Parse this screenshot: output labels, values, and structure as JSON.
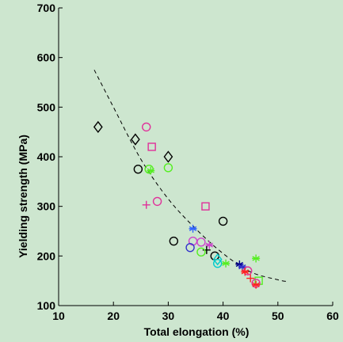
{
  "chart_data": {
    "type": "scatter",
    "xlabel": "Total elongation (%)",
    "ylabel": "Yielding strength (MPa)",
    "xlim": [
      10,
      60
    ],
    "ylim": [
      100,
      700
    ],
    "x_ticks": [
      "10",
      "20",
      "30",
      "40",
      "50",
      "60"
    ],
    "y_ticks": [
      "100",
      "200",
      "300",
      "400",
      "500",
      "600",
      "700"
    ],
    "grid": false,
    "legend": "none",
    "colors": {
      "background": "#cde6cf",
      "axes": "#000000",
      "fit_line": "#000000"
    },
    "fit_curve": {
      "style": "dashed",
      "points": [
        [
          16.5,
          575
        ],
        [
          20,
          500
        ],
        [
          25,
          395
        ],
        [
          30,
          315
        ],
        [
          35,
          255
        ],
        [
          40,
          205
        ],
        [
          45,
          168
        ],
        [
          50,
          152
        ],
        [
          52,
          148
        ]
      ]
    },
    "points": [
      {
        "x": 17.2,
        "y": 460,
        "marker": "diamond",
        "color": "#000000"
      },
      {
        "x": 24.0,
        "y": 435,
        "marker": "diamond",
        "color": "#000000"
      },
      {
        "x": 26.0,
        "y": 460,
        "marker": "circle",
        "color": "#e0309a"
      },
      {
        "x": 27.0,
        "y": 420,
        "marker": "square",
        "color": "#e0309a"
      },
      {
        "x": 30.0,
        "y": 400,
        "marker": "diamond",
        "color": "#000000"
      },
      {
        "x": 26.5,
        "y": 375,
        "marker": "circle",
        "color": "#55ee22"
      },
      {
        "x": 24.5,
        "y": 375,
        "marker": "circle",
        "color": "#000000"
      },
      {
        "x": 26.8,
        "y": 372,
        "marker": "star",
        "color": "#55ee22"
      },
      {
        "x": 30.0,
        "y": 378,
        "marker": "circle",
        "color": "#55ee22"
      },
      {
        "x": 28.0,
        "y": 310,
        "marker": "circle",
        "color": "#e0309a"
      },
      {
        "x": 26.0,
        "y": 303,
        "marker": "plus",
        "color": "#e0309a"
      },
      {
        "x": 36.8,
        "y": 300,
        "marker": "square",
        "color": "#e0309a"
      },
      {
        "x": 40.0,
        "y": 270,
        "marker": "circle",
        "color": "#000000"
      },
      {
        "x": 34.5,
        "y": 255,
        "marker": "star",
        "color": "#3366ff"
      },
      {
        "x": 31.0,
        "y": 230,
        "marker": "circle",
        "color": "#000000"
      },
      {
        "x": 34.5,
        "y": 230,
        "marker": "circle",
        "color": "#cc44cc"
      },
      {
        "x": 36.0,
        "y": 228,
        "marker": "circle",
        "color": "#cc44cc"
      },
      {
        "x": 34.0,
        "y": 217,
        "marker": "circle",
        "color": "#3333cc"
      },
      {
        "x": 37.5,
        "y": 222,
        "marker": "star",
        "color": "#cc44cc"
      },
      {
        "x": 37.0,
        "y": 212,
        "marker": "plus",
        "color": "#000000"
      },
      {
        "x": 36.0,
        "y": 208,
        "marker": "circle",
        "color": "#55ee22"
      },
      {
        "x": 38.5,
        "y": 200,
        "marker": "circle",
        "color": "#000000"
      },
      {
        "x": 39.0,
        "y": 193,
        "marker": "diamond",
        "color": "#00cccc"
      },
      {
        "x": 39.0,
        "y": 185,
        "marker": "circle",
        "color": "#00cccc"
      },
      {
        "x": 40.5,
        "y": 185,
        "marker": "star",
        "color": "#55ee22"
      },
      {
        "x": 43.0,
        "y": 183,
        "marker": "star",
        "color": "#000088"
      },
      {
        "x": 43.5,
        "y": 178,
        "marker": "star",
        "color": "#3333cc"
      },
      {
        "x": 44.5,
        "y": 170,
        "marker": "circle",
        "color": "#e0309a"
      },
      {
        "x": 44.0,
        "y": 168,
        "marker": "star",
        "color": "#ff2222"
      },
      {
        "x": 46.0,
        "y": 195,
        "marker": "star",
        "color": "#55ee22"
      },
      {
        "x": 46.5,
        "y": 150,
        "marker": "square",
        "color": "#55ee22"
      },
      {
        "x": 45.0,
        "y": 155,
        "marker": "plus",
        "color": "#ff2222"
      },
      {
        "x": 46.0,
        "y": 145,
        "marker": "circle",
        "color": "#e0309a"
      },
      {
        "x": 46.0,
        "y": 142,
        "marker": "star",
        "color": "#ff2222"
      }
    ]
  }
}
